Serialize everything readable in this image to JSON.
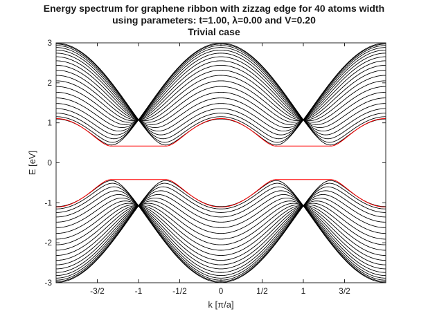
{
  "chart_data": {
    "type": "line",
    "title_lines": [
      "Energy spectrum for graphene ribbon with zizzag edge for 40 atoms width",
      "using parameters: t=1.00, λ=0.00 and V=0.20",
      "Trivial case"
    ],
    "xlabel": "k [π/a]",
    "ylabel": "E [eV]",
    "xlim": [
      -2,
      2
    ],
    "ylim": [
      -3,
      3
    ],
    "xticks": [
      {
        "value": -1.5,
        "label": "-3/2"
      },
      {
        "value": -1,
        "label": "-1"
      },
      {
        "value": -0.5,
        "label": "-1/2"
      },
      {
        "value": 0,
        "label": "0"
      },
      {
        "value": 0.5,
        "label": "1/2"
      },
      {
        "value": 1,
        "label": "1"
      },
      {
        "value": 1.5,
        "label": "3/2"
      }
    ],
    "yticks": [
      {
        "value": 3,
        "label": "3"
      },
      {
        "value": 2,
        "label": "2"
      },
      {
        "value": 1,
        "label": "1"
      },
      {
        "value": 0,
        "label": "0"
      },
      {
        "value": -1,
        "label": "-1"
      },
      {
        "value": -2,
        "label": "-2"
      },
      {
        "value": -3,
        "label": "-3"
      }
    ],
    "grid": false,
    "bulk_band_count_per_side": 20,
    "band_color": "#000000",
    "edge_state_color": "#ff0000",
    "edge_state_gap_energy": 0.42,
    "dirac_point_energy": 1.1
  }
}
